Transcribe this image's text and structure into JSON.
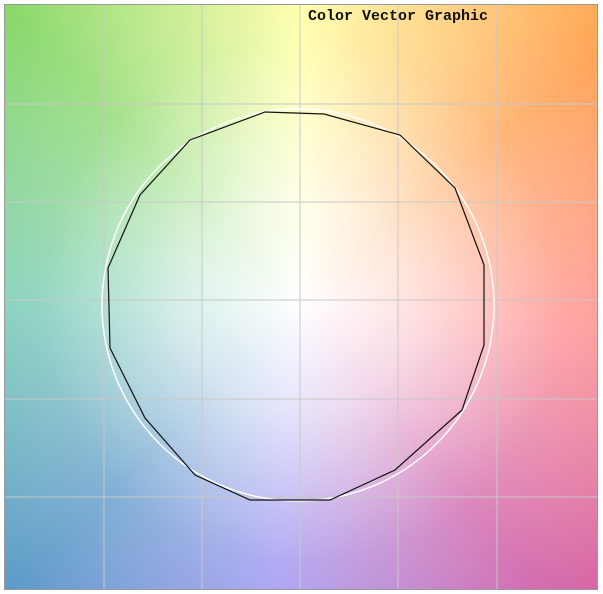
{
  "title": "Color Vector Graphic"
}
